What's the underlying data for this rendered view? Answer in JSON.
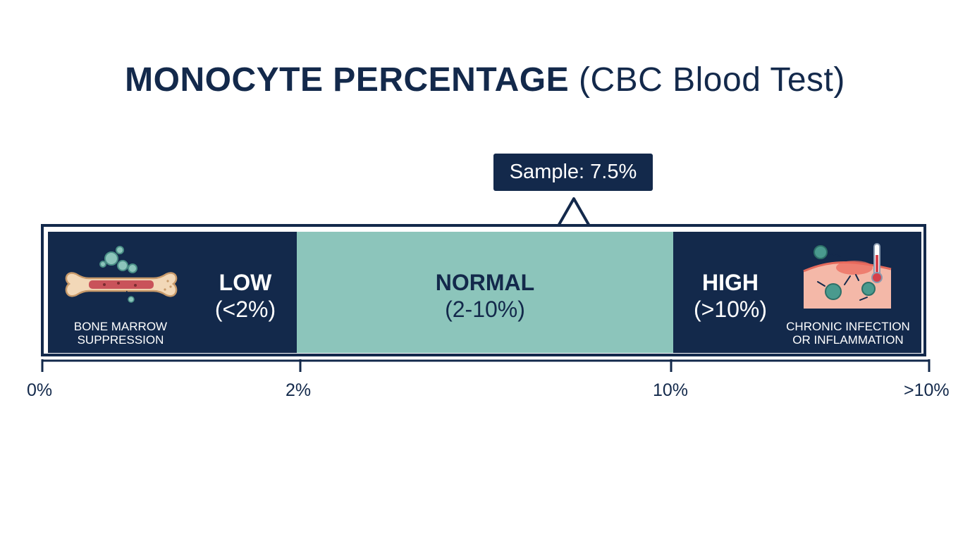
{
  "title": {
    "main": "MONOCYTE PERCENTAGE",
    "paren": "(CBC Blood Test)"
  },
  "callout": {
    "label": "Sample: 7.5%",
    "value_percent": 7.5
  },
  "zones": {
    "low": {
      "name": "LOW",
      "range": "(<2%)",
      "caption_line1": "BONE MARROW",
      "caption_line2": "SUPPRESSION",
      "icon": "bone-marrow-icon",
      "color": "#13294b"
    },
    "normal": {
      "name": "NORMAL",
      "range": "(2-10%)",
      "color": "#8cc5bb"
    },
    "high": {
      "name": "HIGH",
      "range": "(>10%)",
      "caption_line1": "CHRONIC INFECTION",
      "caption_line2": "OR INFLAMMATION",
      "icon": "inflammation-icon",
      "color": "#13294b"
    }
  },
  "axis": {
    "ticks": [
      "0%",
      "2%",
      "10%",
      ">10%"
    ]
  }
}
